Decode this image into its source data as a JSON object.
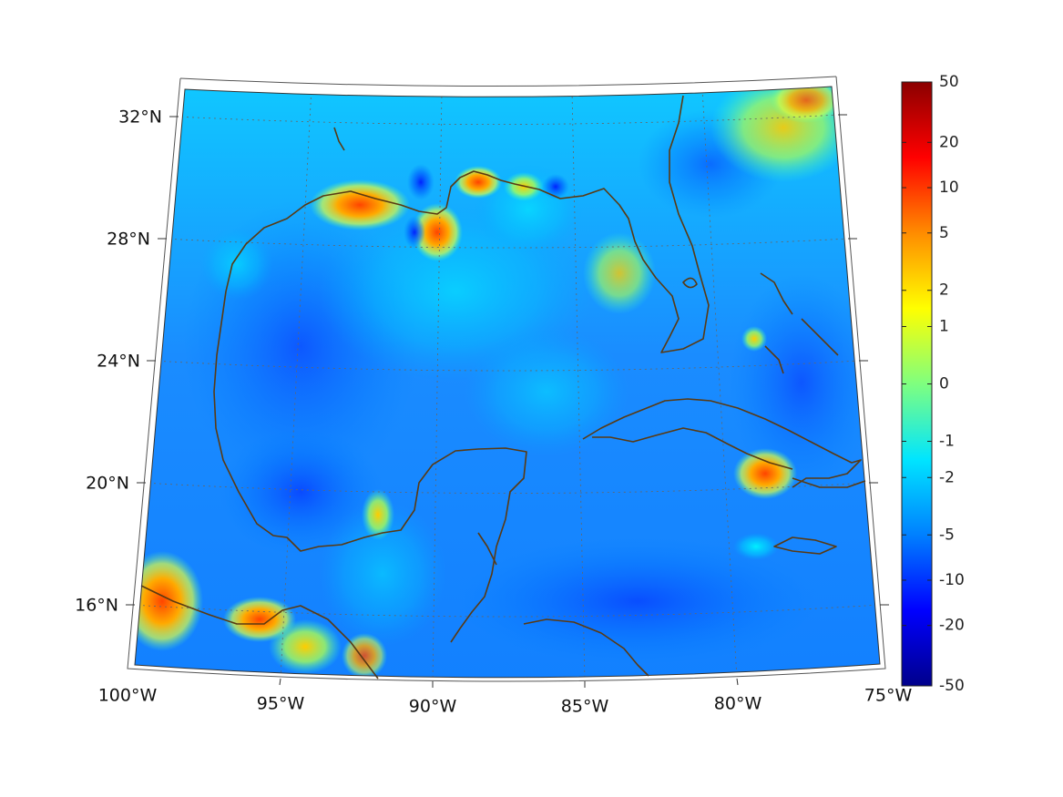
{
  "map": {
    "projection": "lambert-conformal",
    "field_colormap": "jet",
    "coastline_color": "#5a3a12",
    "grid": "dotted",
    "lat_ticks": [
      "32°N",
      "28°N",
      "24°N",
      "20°N",
      "16°N"
    ],
    "lon_ticks": [
      "100°W",
      "95°W",
      "90°W",
      "85°W",
      "80°W",
      "75°W"
    ]
  },
  "colorbar": {
    "colors": [
      "#00008b",
      "#0000ff",
      "#0080ff",
      "#00e5ff",
      "#7fff7f",
      "#ffff00",
      "#ff8c00",
      "#ff0000",
      "#8b0000"
    ],
    "tick_labels": [
      "50",
      "20",
      "10",
      "5",
      "2",
      "1",
      "0",
      "-1",
      "-2",
      "-5",
      "-10",
      "-20",
      "-50"
    ]
  }
}
